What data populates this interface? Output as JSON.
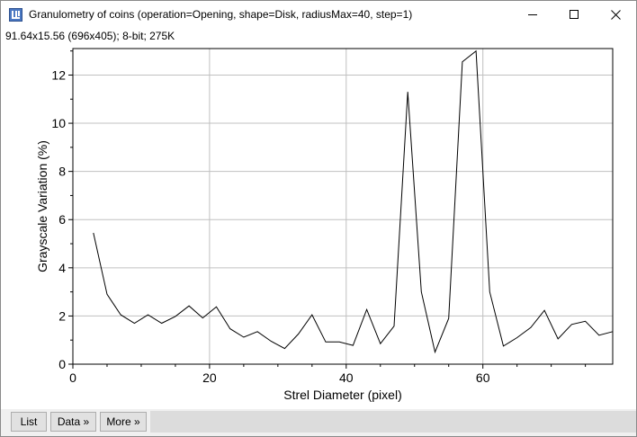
{
  "window": {
    "title": "Granulometry of coins (operation=Opening, shape=Disk, radiusMax=40, step=1)",
    "info": "91.64x15.56   (696x405); 8-bit; 275K"
  },
  "buttons": {
    "list": "List",
    "data": "Data »",
    "more": "More »"
  },
  "icons": {
    "app": "imagej-plot-icon",
    "minimize": "minimize-icon",
    "maximize": "maximize-icon",
    "close": "close-icon"
  },
  "chart_data": {
    "type": "line",
    "title": "",
    "xlabel": "Strel Diameter (pixel)",
    "ylabel": "Grayscale Variation (%)",
    "xlim": [
      0,
      79
    ],
    "ylim": [
      0,
      13.1
    ],
    "xticks": [
      0,
      20,
      40,
      60
    ],
    "yticks": [
      0,
      2,
      4,
      6,
      8,
      10,
      12
    ],
    "grid": true,
    "series": [
      {
        "x": [
          3,
          5,
          7,
          9,
          11,
          13,
          15,
          17,
          19,
          21,
          23,
          25,
          27,
          29,
          31,
          33,
          35,
          37,
          39,
          41,
          43,
          45,
          47,
          49,
          51,
          53,
          55,
          57,
          59,
          61,
          63,
          65,
          67,
          69,
          71,
          73,
          75,
          77,
          79
        ],
        "y": [
          5.45,
          2.9,
          2.05,
          1.7,
          2.05,
          1.7,
          1.98,
          2.42,
          1.92,
          2.38,
          1.47,
          1.12,
          1.35,
          0.95,
          0.65,
          1.25,
          2.05,
          0.92,
          0.92,
          0.78,
          2.27,
          0.85,
          1.58,
          11.3,
          3.0,
          0.5,
          1.9,
          12.55,
          13.0,
          3.0,
          0.75,
          1.1,
          1.52,
          2.23,
          1.05,
          1.65,
          1.78,
          1.2,
          1.35
        ],
        "color": "#000000"
      }
    ]
  }
}
